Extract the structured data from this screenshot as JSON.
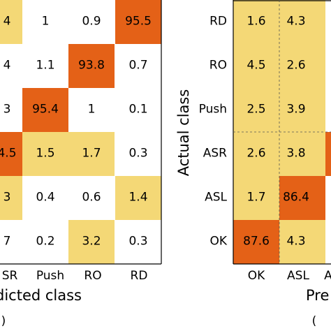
{
  "colors": {
    "high": "#e46117",
    "mid": "#f4d876",
    "low": "#ffffff",
    "border": "#000000"
  },
  "chart_data": [
    {
      "type": "heatmap",
      "rows": [
        "",
        "",
        "",
        "",
        "",
        ""
      ],
      "columns": [
        "SR",
        "Push",
        "RO",
        "RD"
      ],
      "visible_first_column_values": [
        "4",
        "4",
        "3",
        "4.5",
        "3",
        "7"
      ],
      "values": [
        [
          1,
          0.9,
          95.5
        ],
        [
          1.1,
          93.8,
          0.7
        ],
        [
          95.4,
          1,
          0.1
        ],
        [
          1.5,
          1.7,
          0.3
        ],
        [
          0.4,
          0.6,
          1.4
        ],
        [
          0.2,
          3.2,
          0.3
        ]
      ],
      "xlabel": "dicted class",
      "ylabel": "",
      "panel_label": ")"
    },
    {
      "type": "heatmap",
      "rows": [
        "RD",
        "RO",
        "Push",
        "ASR",
        "ASL",
        "OK"
      ],
      "columns": [
        "OK",
        "ASL",
        "A"
      ],
      "values": [
        [
          1.6,
          4.3
        ],
        [
          4.5,
          2.6
        ],
        [
          2.5,
          3.9
        ],
        [
          2.6,
          3.8
        ],
        [
          1.7,
          86.4
        ],
        [
          87.6,
          4.3
        ]
      ],
      "xlabel": "Pre",
      "ylabel": "Actual class",
      "panel_label": "(",
      "edge_shading": [
        "",
        "",
        "",
        "high",
        "",
        ""
      ]
    }
  ]
}
